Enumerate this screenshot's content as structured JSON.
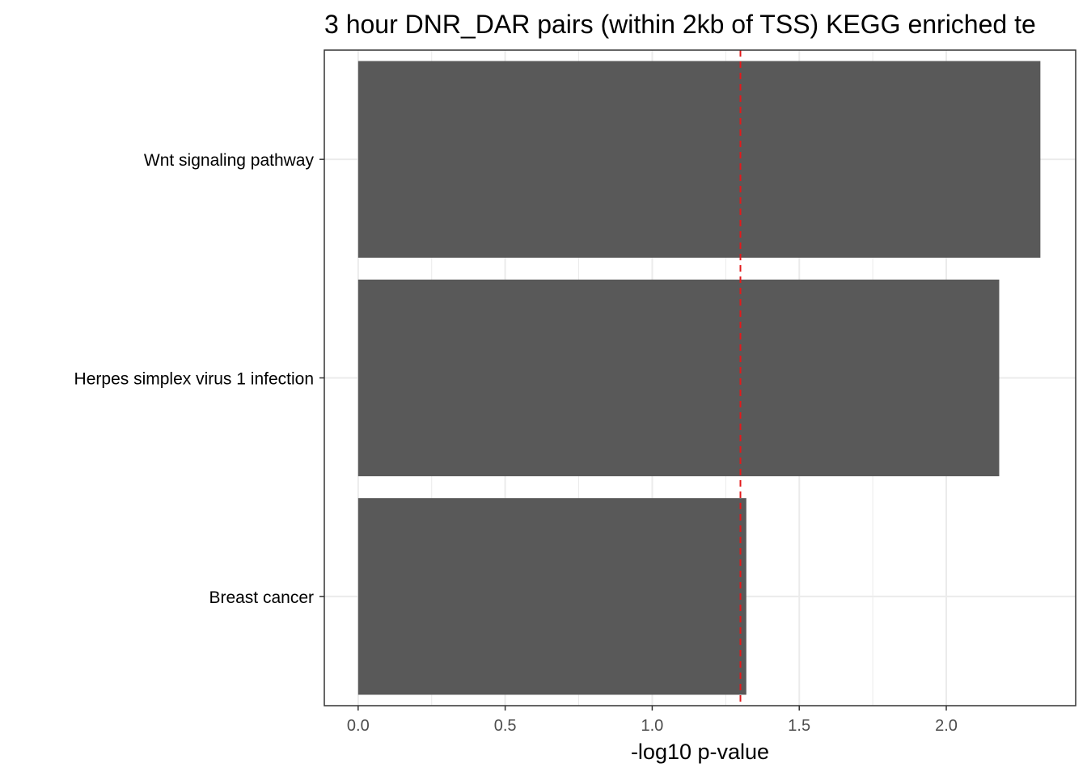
{
  "chart_data": {
    "type": "bar",
    "orientation": "horizontal",
    "title": "3 hour DNR_DAR pairs (within 2kb of TSS) KEGG enriched te",
    "xlabel": "-log10 p-value",
    "ylabel": "",
    "categories": [
      "Wnt signaling pathway",
      "Herpes simplex virus 1 infection",
      "Breast cancer"
    ],
    "values": [
      2.32,
      2.18,
      1.32
    ],
    "xlim": [
      -0.115,
      2.44
    ],
    "xticks": [
      0.0,
      0.5,
      1.0,
      1.5,
      2.0
    ],
    "xtick_labels": [
      "0.0",
      "0.5",
      "1.0",
      "1.5",
      "2.0"
    ],
    "threshold_line": 1.3,
    "grid": true,
    "legend": "none",
    "colors": {
      "bar": "#595959",
      "threshold": "#e31a1c",
      "grid": "#ebebeb",
      "panel_border": "#333333"
    }
  }
}
